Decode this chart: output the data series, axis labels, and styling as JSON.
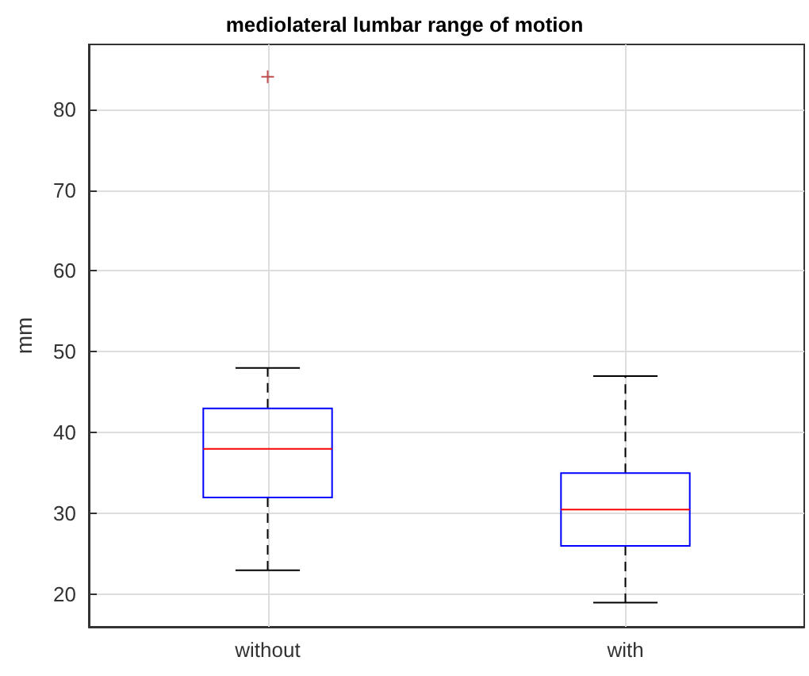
{
  "chart_data": {
    "type": "box",
    "title": "mediolateral lumbar range of motion",
    "ylabel": "mm",
    "categories": [
      "without",
      "with"
    ],
    "series": [
      {
        "color": "#0000ff",
        "boxes": [
          {
            "low": 23,
            "q1": 32,
            "median": 38,
            "q3": 43,
            "high": 48,
            "outliers": [
              84
            ]
          },
          {
            "low": 19,
            "q1": 26,
            "median": 30.5,
            "q3": 35,
            "high": 47
          }
        ]
      }
    ],
    "ylim": [
      16,
      88
    ],
    "yticks": [
      20,
      30,
      40,
      50,
      60,
      70,
      80
    ],
    "grid": true,
    "marker": "cross"
  }
}
